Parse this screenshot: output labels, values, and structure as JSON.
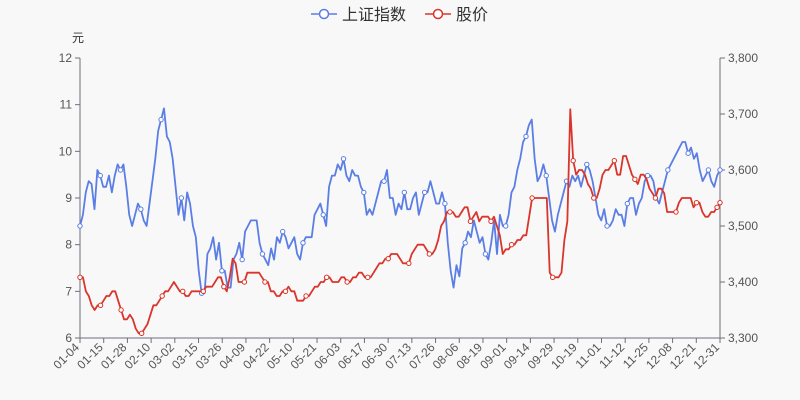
{
  "chart_data": {
    "type": "line",
    "title": "",
    "legend_position": "top-center",
    "y_left": {
      "unit": "元",
      "min": 6,
      "max": 12,
      "ticks": [
        6,
        7,
        8,
        9,
        10,
        11,
        12
      ],
      "tick_labels": [
        "6",
        "7",
        "8",
        "9",
        "10",
        "11",
        "12"
      ]
    },
    "y_right": {
      "min": 3300,
      "max": 3800,
      "ticks": [
        3300,
        3400,
        3500,
        3600,
        3700,
        3800
      ],
      "tick_labels": [
        "3,300",
        "3,400",
        "3,500",
        "3,600",
        "3,700",
        "3,800"
      ]
    },
    "x_tick_labels": [
      "01-04",
      "01-15",
      "01-28",
      "02-10",
      "03-02",
      "03-15",
      "03-26",
      "04-09",
      "04-22",
      "05-10",
      "05-21",
      "06-03",
      "06-17",
      "06-30",
      "07-13",
      "07-26",
      "08-06",
      "08-19",
      "09-01",
      "09-14",
      "09-29",
      "10-19",
      "11-01",
      "11-12",
      "11-25",
      "12-08",
      "12-21",
      "12-31"
    ],
    "gridlines": false,
    "series": [
      {
        "name": "上证指数",
        "color": "#5b7ee5",
        "axis": "right",
        "values": [
          3500,
          3520,
          3560,
          3580,
          3575,
          3530,
          3600,
          3590,
          3570,
          3570,
          3590,
          3560,
          3590,
          3610,
          3600,
          3610,
          3570,
          3520,
          3500,
          3520,
          3540,
          3530,
          3510,
          3500,
          3540,
          3580,
          3620,
          3670,
          3690,
          3710,
          3660,
          3650,
          3620,
          3570,
          3520,
          3550,
          3510,
          3560,
          3540,
          3500,
          3480,
          3420,
          3380,
          3380,
          3450,
          3460,
          3480,
          3440,
          3470,
          3420,
          3420,
          3390,
          3390,
          3440,
          3450,
          3470,
          3440,
          3490,
          3500,
          3510,
          3510,
          3510,
          3470,
          3450,
          3440,
          3430,
          3460,
          3440,
          3480,
          3470,
          3490,
          3480,
          3460,
          3470,
          3480,
          3450,
          3440,
          3470,
          3480,
          3480,
          3480,
          3520,
          3530,
          3540,
          3520,
          3500,
          3570,
          3590,
          3590,
          3610,
          3600,
          3620,
          3590,
          3580,
          3600,
          3590,
          3590,
          3570,
          3560,
          3520,
          3530,
          3520,
          3540,
          3560,
          3580,
          3580,
          3600,
          3550,
          3550,
          3520,
          3540,
          3530,
          3560,
          3530,
          3530,
          3550,
          3560,
          3520,
          3540,
          3560,
          3560,
          3580,
          3560,
          3540,
          3540,
          3560,
          3540,
          3470,
          3420,
          3390,
          3430,
          3410,
          3460,
          3470,
          3490,
          3480,
          3510,
          3490,
          3470,
          3480,
          3450,
          3440,
          3470,
          3510,
          3450,
          3520,
          3500,
          3500,
          3520,
          3560,
          3570,
          3600,
          3620,
          3650,
          3660,
          3680,
          3690,
          3620,
          3580,
          3590,
          3610,
          3590,
          3550,
          3510,
          3490,
          3520,
          3540,
          3560,
          3580,
          3570,
          3590,
          3580,
          3590,
          3570,
          3590,
          3610,
          3600,
          3580,
          3550,
          3520,
          3510,
          3530,
          3500,
          3500,
          3510,
          3530,
          3520,
          3520,
          3500,
          3540,
          3550,
          3550,
          3520,
          3540,
          3550,
          3580,
          3590,
          3590,
          3580,
          3550,
          3540,
          3560,
          3580,
          3600,
          3610,
          3620,
          3630,
          3640,
          3650,
          3650,
          3630,
          3640,
          3620,
          3630,
          3600,
          3580,
          3590,
          3600,
          3580,
          3570,
          3590,
          3600
        ]
      },
      {
        "name": "股价",
        "color": "#d9352a",
        "axis": "left",
        "values": [
          7.3,
          7.3,
          7.0,
          6.9,
          6.7,
          6.6,
          6.7,
          6.7,
          6.8,
          6.9,
          6.9,
          7.0,
          7.0,
          6.8,
          6.6,
          6.4,
          6.4,
          6.5,
          6.4,
          6.2,
          6.1,
          6.1,
          6.2,
          6.3,
          6.5,
          6.7,
          6.7,
          6.8,
          6.9,
          7.0,
          7.0,
          7.1,
          7.2,
          7.1,
          7.0,
          7.0,
          6.9,
          6.9,
          7.0,
          7.0,
          7.0,
          7.0,
          7.0,
          7.1,
          7.1,
          7.1,
          7.2,
          7.3,
          7.3,
          7.1,
          7.0,
          7.3,
          7.7,
          7.6,
          7.2,
          7.2,
          7.2,
          7.4,
          7.4,
          7.4,
          7.4,
          7.4,
          7.3,
          7.2,
          7.2,
          7.0,
          7.0,
          6.9,
          6.9,
          7.0,
          7.0,
          7.1,
          7.0,
          7.0,
          6.8,
          6.8,
          6.8,
          6.9,
          6.9,
          7.0,
          7.1,
          7.1,
          7.2,
          7.2,
          7.3,
          7.3,
          7.2,
          7.2,
          7.2,
          7.3,
          7.3,
          7.2,
          7.2,
          7.3,
          7.3,
          7.4,
          7.4,
          7.3,
          7.3,
          7.3,
          7.4,
          7.5,
          7.6,
          7.6,
          7.7,
          7.7,
          7.8,
          7.8,
          7.8,
          7.7,
          7.6,
          7.6,
          7.6,
          7.8,
          7.9,
          8.0,
          8.0,
          8.0,
          7.9,
          7.8,
          7.8,
          7.9,
          8.1,
          8.4,
          8.5,
          8.7,
          8.7,
          8.7,
          8.6,
          8.6,
          8.7,
          8.8,
          8.8,
          8.5,
          8.6,
          8.7,
          8.5,
          8.6,
          8.6,
          8.6,
          8.5,
          8.6,
          8.4,
          8.2,
          7.8,
          7.9,
          7.9,
          8.0,
          8.0,
          8.1,
          8.1,
          8.2,
          8.2,
          8.6,
          9.0,
          9.0,
          9.0,
          9.0,
          9.0,
          9.0,
          7.4,
          7.3,
          7.3,
          7.3,
          7.4,
          8.1,
          8.5,
          10.9,
          9.8,
          9.5,
          9.6,
          9.6,
          9.5,
          9.3,
          9.2,
          9.0,
          9.0,
          9.2,
          9.5,
          9.6,
          9.6,
          9.7,
          9.8,
          9.5,
          9.5,
          9.9,
          9.9,
          9.7,
          9.5,
          9.4,
          9.3,
          9.5,
          9.5,
          9.4,
          9.2,
          9.1,
          9.0,
          9.2,
          9.2,
          9.1,
          8.7,
          8.7,
          8.7,
          8.7,
          8.9,
          9.0,
          9.0,
          9.0,
          9.0,
          8.8,
          8.9,
          8.9,
          8.7,
          8.6,
          8.6,
          8.7,
          8.7,
          8.8,
          8.9
        ]
      }
    ]
  }
}
